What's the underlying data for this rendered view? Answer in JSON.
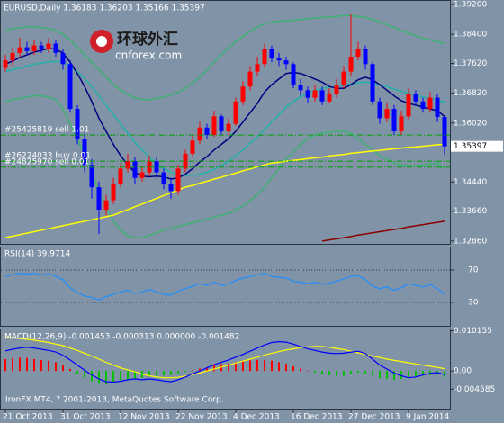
{
  "chart_data": [
    {
      "type": "candlestick",
      "title": "EURUSD,Daily 1.36183 1.36203 1.35166 1.35397",
      "categories": [
        "21 Oct 2013",
        null,
        null,
        null,
        null,
        null,
        null,
        null,
        "31 Oct 2013",
        null,
        null,
        null,
        null,
        null,
        null,
        null,
        "12 Nov 2013",
        null,
        null,
        null,
        null,
        null,
        null,
        null,
        "22 Nov 2013",
        null,
        null,
        null,
        null,
        null,
        null,
        null,
        "4 Dec 2013",
        null,
        null,
        null,
        null,
        null,
        null,
        null,
        "16 Dec 2013",
        null,
        null,
        null,
        null,
        null,
        null,
        null,
        "27 Dec 2013",
        null,
        null,
        null,
        null,
        null,
        null,
        null,
        "9 Jan 2014",
        null,
        null,
        null,
        null,
        null
      ],
      "open": [
        1.375,
        1.377,
        1.379,
        1.3805,
        1.3795,
        1.381,
        1.38,
        1.3815,
        1.379,
        1.376,
        1.364,
        1.356,
        1.349,
        1.343,
        1.337,
        1.3395,
        1.344,
        1.348,
        1.35,
        1.3455,
        1.347,
        1.35,
        1.347,
        1.344,
        1.342,
        1.348,
        1.352,
        1.3555,
        1.359,
        1.357,
        1.362,
        1.358,
        1.36,
        1.366,
        1.37,
        1.374,
        1.376,
        1.38,
        1.3775,
        1.377,
        1.376,
        1.3705,
        1.369,
        1.367,
        1.369,
        1.366,
        1.368,
        1.3705,
        1.374,
        1.378,
        1.38,
        1.376,
        1.366,
        1.3615,
        1.364,
        1.358,
        1.362,
        1.368,
        1.366,
        1.364,
        1.367,
        1.36183
      ],
      "high": [
        1.3785,
        1.3805,
        1.383,
        1.382,
        1.3825,
        1.382,
        1.383,
        1.3825,
        1.38,
        1.377,
        1.365,
        1.3575,
        1.3505,
        1.3445,
        1.341,
        1.3455,
        1.3495,
        1.352,
        1.351,
        1.3485,
        1.3515,
        1.351,
        1.348,
        1.3455,
        1.349,
        1.353,
        1.357,
        1.3605,
        1.36,
        1.3635,
        1.3625,
        1.3615,
        1.367,
        1.3715,
        1.3755,
        1.378,
        1.3815,
        1.381,
        1.379,
        1.378,
        1.3765,
        1.372,
        1.37,
        1.3705,
        1.37,
        1.3695,
        1.372,
        1.3755,
        1.3893,
        1.382,
        1.381,
        1.3765,
        1.367,
        1.3655,
        1.365,
        1.3635,
        1.3695,
        1.369,
        1.367,
        1.3685,
        1.368,
        1.36203
      ],
      "low": [
        1.374,
        1.3755,
        1.378,
        1.3785,
        1.3785,
        1.379,
        1.379,
        1.378,
        1.3745,
        1.363,
        1.3545,
        1.347,
        1.34,
        1.3305,
        1.3355,
        1.3385,
        1.343,
        1.347,
        1.344,
        1.3445,
        1.346,
        1.3455,
        1.3425,
        1.34,
        1.341,
        1.347,
        1.351,
        1.3545,
        1.356,
        1.3565,
        1.357,
        1.357,
        1.3595,
        1.365,
        1.369,
        1.373,
        1.375,
        1.3765,
        1.3755,
        1.3745,
        1.3695,
        1.3675,
        1.3655,
        1.366,
        1.365,
        1.3655,
        1.367,
        1.3695,
        1.373,
        1.377,
        1.3745,
        1.365,
        1.36,
        1.3605,
        1.357,
        1.357,
        1.361,
        1.365,
        1.363,
        1.363,
        1.3605,
        1.35166
      ],
      "close": [
        1.377,
        1.379,
        1.3805,
        1.3795,
        1.381,
        1.38,
        1.3815,
        1.379,
        1.376,
        1.364,
        1.356,
        1.349,
        1.343,
        1.337,
        1.3395,
        1.344,
        1.348,
        1.35,
        1.3455,
        1.347,
        1.35,
        1.347,
        1.344,
        1.342,
        1.348,
        1.352,
        1.3555,
        1.359,
        1.357,
        1.362,
        1.358,
        1.36,
        1.366,
        1.37,
        1.374,
        1.376,
        1.38,
        1.3775,
        1.377,
        1.376,
        1.3705,
        1.369,
        1.367,
        1.369,
        1.366,
        1.368,
        1.3705,
        1.374,
        1.378,
        1.38,
        1.376,
        1.366,
        1.3615,
        1.364,
        1.358,
        1.362,
        1.368,
        1.366,
        1.364,
        1.367,
        1.36183,
        1.35397
      ],
      "up_color": "#ff0000",
      "down_color": "#0000ff",
      "overlays": [
        {
          "color": "#3cb371",
          "values": [
            1.385,
            1.3855,
            1.3858,
            1.386,
            1.386,
            1.3858,
            1.3855,
            1.385,
            1.384,
            1.3825,
            1.3805,
            1.3785,
            1.3765,
            1.3745,
            1.3725,
            1.3705,
            1.369,
            1.3678,
            1.367,
            1.3665,
            1.3665,
            1.3668,
            1.3672,
            1.3678,
            1.3685,
            1.3695,
            1.371,
            1.3725,
            1.3745,
            1.3765,
            1.3785,
            1.3805,
            1.382,
            1.3835,
            1.3848,
            1.386,
            1.3868,
            1.3872,
            1.3875,
            1.3876,
            1.3878,
            1.388,
            1.3882,
            1.3884,
            1.3885,
            1.3886,
            1.3888,
            1.389,
            1.389,
            1.3888,
            1.3885,
            1.388,
            1.3873,
            1.3866,
            1.3858,
            1.385,
            1.3843,
            1.3836,
            1.383,
            1.3825,
            1.382,
            1.3815
          ]
        },
        {
          "color": "#3cb371",
          "values": [
            1.366,
            1.3665,
            1.3668,
            1.3672,
            1.3675,
            1.3675,
            1.3672,
            1.3665,
            1.364,
            1.36,
            1.356,
            1.3515,
            1.347,
            1.342,
            1.3375,
            1.334,
            1.3315,
            1.33,
            1.3295,
            1.3295,
            1.33,
            1.3308,
            1.3315,
            1.332,
            1.3325,
            1.333,
            1.3335,
            1.334,
            1.3345,
            1.335,
            1.3355,
            1.336,
            1.337,
            1.338,
            1.3395,
            1.341,
            1.343,
            1.3455,
            1.348,
            1.3505,
            1.3525,
            1.3545,
            1.356,
            1.357,
            1.3575,
            1.3578,
            1.358,
            1.358,
            1.3575,
            1.356,
            1.3545,
            1.353,
            1.3515,
            1.3505,
            1.3495,
            1.349,
            1.3488,
            1.3488,
            1.349,
            1.3492,
            1.3495,
            1.348
          ]
        },
        {
          "color": "#20b2aa",
          "values": [
            1.374,
            1.3745,
            1.375,
            1.3755,
            1.376,
            1.3763,
            1.3766,
            1.3767,
            1.3765,
            1.3755,
            1.374,
            1.3722,
            1.37,
            1.3675,
            1.365,
            1.3625,
            1.36,
            1.3575,
            1.355,
            1.353,
            1.351,
            1.3495,
            1.348,
            1.347,
            1.3465,
            1.3462,
            1.3462,
            1.3465,
            1.347,
            1.3478,
            1.3488,
            1.35,
            1.3515,
            1.353,
            1.3548,
            1.3565,
            1.3585,
            1.3605,
            1.3625,
            1.3645,
            1.366,
            1.3672,
            1.3682,
            1.369,
            1.3695,
            1.3698,
            1.37,
            1.3703,
            1.3707,
            1.371,
            1.3712,
            1.371,
            1.3705,
            1.37,
            1.3693,
            1.3687,
            1.3682,
            1.3677,
            1.3672,
            1.3668,
            1.3663,
            1.3658
          ]
        },
        {
          "color": "#000080",
          "values": [
            1.376,
            1.3768,
            1.3778,
            1.3785,
            1.3792,
            1.3797,
            1.3802,
            1.38,
            1.379,
            1.3765,
            1.3735,
            1.37,
            1.366,
            1.3615,
            1.358,
            1.3545,
            1.3515,
            1.349,
            1.347,
            1.346,
            1.3458,
            1.346,
            1.3458,
            1.3452,
            1.3455,
            1.3465,
            1.348,
            1.3498,
            1.3512,
            1.353,
            1.3545,
            1.356,
            1.358,
            1.3605,
            1.363,
            1.3655,
            1.3685,
            1.3705,
            1.372,
            1.3735,
            1.3738,
            1.3735,
            1.3728,
            1.372,
            1.3712,
            1.37,
            1.3695,
            1.3695,
            1.3705,
            1.3718,
            1.3725,
            1.3718,
            1.3705,
            1.369,
            1.3675,
            1.3662,
            1.3655,
            1.365,
            1.3645,
            1.364,
            1.3635,
            1.362
          ]
        },
        {
          "color": "#ffff00",
          "values": [
            1.3295,
            1.3299,
            1.3303,
            1.3307,
            1.3311,
            1.3315,
            1.3319,
            1.3323,
            1.3327,
            1.3331,
            1.3335,
            1.3339,
            1.3343,
            1.3347,
            1.3351,
            1.3355,
            1.3363,
            1.337,
            1.3378,
            1.3385,
            1.3393,
            1.34,
            1.3408,
            1.3415,
            1.3423,
            1.343,
            1.3435,
            1.3441,
            1.3446,
            1.3452,
            1.3457,
            1.3463,
            1.3468,
            1.3474,
            1.3479,
            1.3485,
            1.349,
            1.3495,
            1.3497,
            1.35,
            1.3502,
            1.3504,
            1.3507,
            1.3509,
            1.3511,
            1.3514,
            1.3516,
            1.3518,
            1.3521,
            1.3523,
            1.3525,
            1.3527,
            1.3529,
            1.3531,
            1.3533,
            1.3535,
            1.3537,
            1.3538,
            1.354,
            1.3542,
            1.3544,
            1.3545
          ]
        },
        {
          "color": "#8b0000",
          "values": [
            null,
            null,
            null,
            null,
            null,
            null,
            null,
            null,
            null,
            null,
            null,
            null,
            null,
            null,
            null,
            null,
            null,
            null,
            null,
            null,
            null,
            null,
            null,
            null,
            null,
            null,
            null,
            null,
            null,
            null,
            null,
            null,
            null,
            null,
            null,
            null,
            null,
            null,
            null,
            null,
            null,
            null,
            null,
            null,
            1.3286,
            1.3289,
            1.3292,
            1.3295,
            1.3298,
            1.3302,
            1.3305,
            1.3308,
            1.3311,
            1.3314,
            1.3317,
            1.332,
            1.3324,
            1.3327,
            1.333,
            1.3333,
            1.3336,
            1.3339
          ]
        }
      ],
      "levels": [
        {
          "value": 1.357,
          "label": "#25425819 sell 1.01"
        },
        {
          "value": 1.35,
          "label": "#26224033 buy 0.01"
        },
        {
          "value": 1.3484,
          "label": "#24825970 sell 0.01"
        }
      ],
      "level_color": "#00a000",
      "ylim": [
        1.3276,
        1.3932
      ],
      "yticks": [
        {
          "value": 1.392,
          "label": "1.39200"
        },
        {
          "value": 1.384,
          "label": "1.38400"
        },
        {
          "value": 1.3762,
          "label": "1.37620"
        },
        {
          "value": 1.3682,
          "label": "1.36820"
        },
        {
          "value": 1.3602,
          "label": "1.36020"
        },
        {
          "value": 1.3444,
          "label": "1.34440"
        },
        {
          "value": 1.3366,
          "label": "1.33660"
        },
        {
          "value": 1.3286,
          "label": "1.32860"
        }
      ],
      "last_price": 1.35397,
      "watermark": [
        "环球外汇",
        "cnforex.com"
      ]
    },
    {
      "type": "line",
      "title": "RSI(14) 39.9714",
      "values": [
        62,
        64,
        66,
        65,
        66,
        64,
        65,
        62,
        58,
        48,
        42,
        38,
        36,
        33,
        37,
        40,
        43,
        45,
        41,
        43,
        46,
        43,
        40,
        39,
        44,
        47,
        50,
        53,
        51,
        55,
        51,
        53,
        57,
        60,
        62,
        64,
        66,
        62,
        61,
        60,
        56,
        55,
        53,
        55,
        52,
        54,
        56,
        59,
        62,
        63,
        58,
        50,
        47,
        49,
        45,
        48,
        53,
        51,
        49,
        52,
        47,
        39.9714
      ],
      "color": "#1e90ff",
      "ylim": [
        0,
        100
      ],
      "yticks": [
        70,
        30
      ]
    },
    {
      "type": "macd",
      "title": "MACD(12,26,9) -0.001453 -0.000313 0.000000 -0.001482",
      "histogram": [
        0.003,
        0.0032,
        0.0034,
        0.0033,
        0.003,
        0.0028,
        0.0026,
        0.0022,
        0.0015,
        0.0005,
        -0.0008,
        -0.0018,
        -0.0026,
        -0.0032,
        -0.0034,
        -0.003,
        -0.0026,
        -0.0022,
        -0.002,
        -0.0017,
        -0.0014,
        -0.0012,
        -0.0011,
        -0.001,
        -0.0006,
        -0.0002,
        0.0002,
        0.0006,
        0.001,
        0.0014,
        0.0017,
        0.0019,
        0.0022,
        0.0025,
        0.0027,
        0.0028,
        0.0028,
        0.0026,
        0.0022,
        0.0018,
        0.0012,
        0.0006,
        0.0001,
        -0.0004,
        -0.0008,
        -0.0011,
        -0.0013,
        -0.0012,
        -0.0008,
        -0.0004,
        -0.0006,
        -0.0012,
        -0.0018,
        -0.002,
        -0.0022,
        -0.002,
        -0.0016,
        -0.0014,
        -0.0012,
        -0.001,
        -0.0009,
        -0.0015
      ],
      "up_color": "#ff0000",
      "down_color": "#00c000",
      "series": [
        {
          "color": "#ffff00",
          "values": [
            0.0085,
            0.0084,
            0.0082,
            0.008,
            0.0078,
            0.0075,
            0.0072,
            0.0068,
            0.0064,
            0.0058,
            0.0052,
            0.0045,
            0.0038,
            0.003,
            0.0022,
            0.0015,
            0.0008,
            0.0003,
            -0.0002,
            -0.0008,
            -0.0012,
            -0.0015,
            -0.0017,
            -0.0017,
            -0.0016,
            -0.0013,
            -0.0009,
            -0.0005,
            0,
            0.0005,
            0.001,
            0.0015,
            0.002,
            0.0025,
            0.003,
            0.0035,
            0.004,
            0.0045,
            0.0049,
            0.0053,
            0.0056,
            0.0059,
            0.0061,
            0.0062,
            0.0062,
            0.006,
            0.0057,
            0.0054,
            0.005,
            0.0046,
            0.0042,
            0.0038,
            0.0034,
            0.003,
            0.0027,
            0.0024,
            0.0021,
            0.0018,
            0.0015,
            0.0012,
            0.0009,
            0.0006
          ]
        },
        {
          "color": "#0000ff",
          "values": [
            0.0051,
            0.0055,
            0.0058,
            0.006,
            0.0058,
            0.0055,
            0.0052,
            0.0048,
            0.004,
            0.0028,
            0.0015,
            0.0002,
            -0.001,
            -0.002,
            -0.0027,
            -0.0028,
            -0.0026,
            -0.0022,
            -0.002,
            -0.0022,
            -0.002,
            -0.0022,
            -0.0025,
            -0.0027,
            -0.0022,
            -0.0015,
            -0.0007,
            0,
            0.0008,
            0.0016,
            0.0022,
            0.0028,
            0.0035,
            0.0042,
            0.005,
            0.0058,
            0.0066,
            0.0072,
            0.0074,
            0.0073,
            0.0068,
            0.0062,
            0.0056,
            0.0052,
            0.0048,
            0.0045,
            0.0044,
            0.0045,
            0.0048,
            0.005,
            0.0044,
            0.003,
            0.0015,
            0.0005,
            -0.0005,
            -0.0012,
            -0.0017,
            -0.0015,
            -0.001,
            -0.0006,
            -0.0004,
            -0.0009
          ]
        }
      ],
      "ylim": [
        -0.0095,
        0.0105
      ],
      "yticks": [
        0.010155,
        {
          "value": 0,
          "label": "0.00"
        },
        -0.004585
      ]
    }
  ],
  "footer": "IronFX MT4, ? 2001-2013, MetaQuotes Software Corp."
}
